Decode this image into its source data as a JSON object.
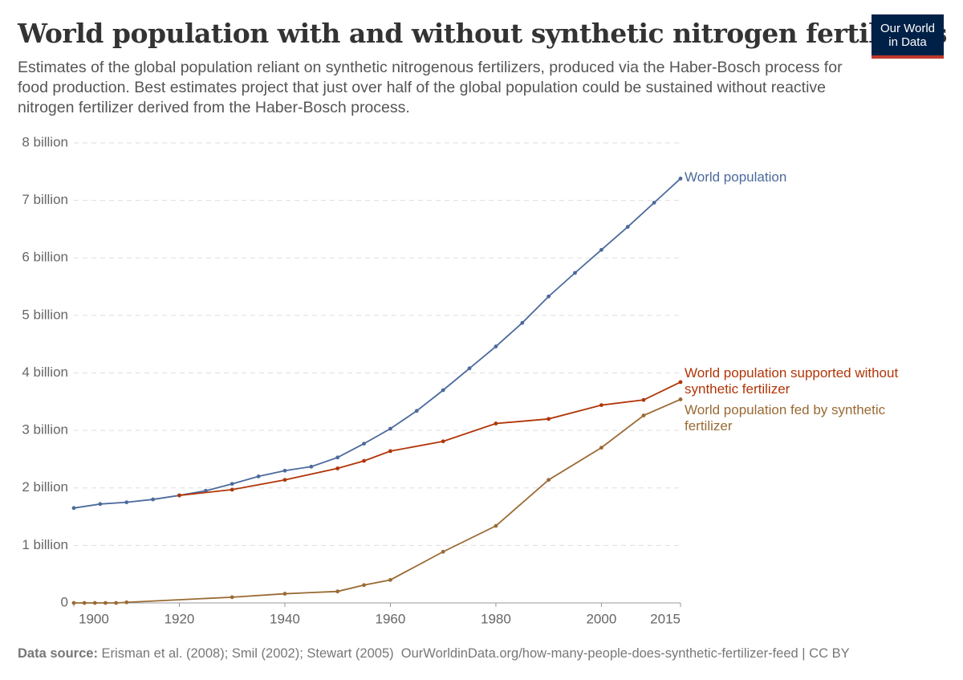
{
  "chart_data": {
    "type": "line",
    "title": "World population with and without synthetic nitrogen fertilizers",
    "subtitle": "Estimates of the global population reliant on synthetic nitrogenous fertilizers, produced via the Haber-Bosch process for food production. Best estimates project that just over half of the global population could be sustained without reactive nitrogen fertilizer derived from the Haber-Bosch process.",
    "source_label": "Data source:",
    "source": "Erisman et al. (2008); Smil (2002); Stewart (2005)",
    "source_url": "OurWorldinData.org/how-many-people-does-synthetic-fertilizer-feed | CC BY",
    "xlim": [
      1900,
      2015
    ],
    "xticks": [
      1900,
      1920,
      1940,
      1960,
      1980,
      2000,
      2015
    ],
    "ylim": [
      0,
      8000000000
    ],
    "yticks": [
      0,
      {
        "value": 1000000000,
        "label": "1 billion"
      },
      {
        "value": 2000000000,
        "label": "2 billion"
      },
      {
        "value": 3000000000,
        "label": "3 billion"
      },
      {
        "value": 4000000000,
        "label": "4 billion"
      },
      {
        "value": 5000000000,
        "label": "5 billion"
      },
      {
        "value": 6000000000,
        "label": "6 billion"
      },
      {
        "value": 7000000000,
        "label": "7 billion"
      },
      {
        "value": 8000000000,
        "label": "8 billion"
      }
    ],
    "grid": true,
    "series": [
      {
        "name": "World population",
        "color": "#4c6a9c",
        "x": [
          1900,
          1905,
          1910,
          1915,
          1920,
          1925,
          1930,
          1935,
          1940,
          1945,
          1950,
          1955,
          1960,
          1965,
          1970,
          1975,
          1980,
          1985,
          1990,
          1995,
          2000,
          2005,
          2010,
          2015
        ],
        "values": [
          1650000000,
          1720000000,
          1750000000,
          1800000000,
          1870000000,
          1950000000,
          2070000000,
          2200000000,
          2300000000,
          2370000000,
          2530000000,
          2770000000,
          3030000000,
          3340000000,
          3700000000,
          4080000000,
          4460000000,
          4870000000,
          5330000000,
          5740000000,
          6140000000,
          6540000000,
          6960000000,
          7380000000
        ]
      },
      {
        "name": "World population supported without synthetic fertilizer",
        "color": "#b13507",
        "x": [
          1920,
          1930,
          1940,
          1950,
          1955,
          1960,
          1970,
          1980,
          1990,
          2000,
          2008,
          2015
        ],
        "values": [
          1870000000,
          1970000000,
          2140000000,
          2340000000,
          2470000000,
          2640000000,
          2810000000,
          3120000000,
          3200000000,
          3440000000,
          3530000000,
          3840000000
        ]
      },
      {
        "name": "World population fed by synthetic fertilizer",
        "color": "#9a6a34",
        "x": [
          1900,
          1902,
          1904,
          1906,
          1908,
          1910,
          1930,
          1940,
          1950,
          1955,
          1960,
          1970,
          1980,
          1990,
          2000,
          2008,
          2015
        ],
        "values": [
          0,
          0,
          0,
          0,
          0,
          10000000,
          100000000,
          160000000,
          200000000,
          310000000,
          400000000,
          890000000,
          1340000000,
          2140000000,
          2700000000,
          3260000000,
          3540000000
        ]
      }
    ]
  },
  "logo": [
    "Our World",
    "in Data"
  ]
}
